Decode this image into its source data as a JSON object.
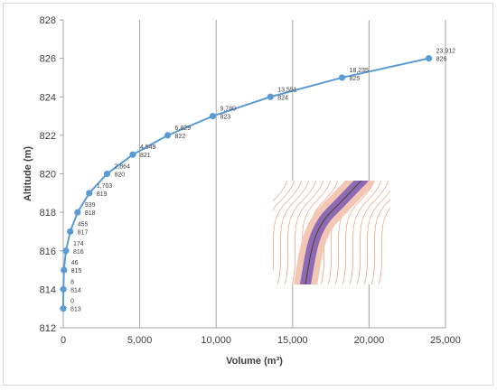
{
  "chart_data": {
    "type": "line",
    "title": "",
    "xlabel": "Volume (m³)",
    "ylabel": "Altitude (m)",
    "xlim": [
      0,
      25000
    ],
    "ylim": [
      812,
      828
    ],
    "x_ticks": [
      "0",
      "5,000",
      "10,000",
      "15,000",
      "20,000",
      "25,000"
    ],
    "y_ticks": [
      "812",
      "814",
      "816",
      "818",
      "820",
      "822",
      "824",
      "826",
      "828"
    ],
    "grid": "vertical",
    "legend": "none",
    "series": [
      {
        "color": "#5b9bd5",
        "points": [
          {
            "x": 0,
            "y": 813,
            "vlabel": "0",
            "alabel": "813"
          },
          {
            "x": 8,
            "y": 814,
            "vlabel": "8",
            "alabel": "814"
          },
          {
            "x": 46,
            "y": 815,
            "vlabel": "46",
            "alabel": "815"
          },
          {
            "x": 174,
            "y": 816,
            "vlabel": "174",
            "alabel": "816"
          },
          {
            "x": 455,
            "y": 817,
            "vlabel": "455",
            "alabel": "817"
          },
          {
            "x": 939,
            "y": 818,
            "vlabel": "939",
            "alabel": "818"
          },
          {
            "x": 1703,
            "y": 819,
            "vlabel": "1,703",
            "alabel": "819"
          },
          {
            "x": 2864,
            "y": 820,
            "vlabel": "2,864",
            "alabel": "820"
          },
          {
            "x": 4549,
            "y": 821,
            "vlabel": "4,549",
            "alabel": "821"
          },
          {
            "x": 6829,
            "y": 822,
            "vlabel": "6,829",
            "alabel": "822"
          },
          {
            "x": 9780,
            "y": 823,
            "vlabel": "9,780",
            "alabel": "823"
          },
          {
            "x": 13551,
            "y": 824,
            "vlabel": "13,551",
            "alabel": "824"
          },
          {
            "x": 18235,
            "y": 825,
            "vlabel": "18,235",
            "alabel": "825"
          },
          {
            "x": 23912,
            "y": 826,
            "vlabel": "23,912",
            "alabel": "826"
          }
        ]
      }
    ]
  },
  "inset": {
    "contour_color": "#e8a98f",
    "buffer_color": "#f4c6b4",
    "channel_color": "#8b6bb5"
  }
}
